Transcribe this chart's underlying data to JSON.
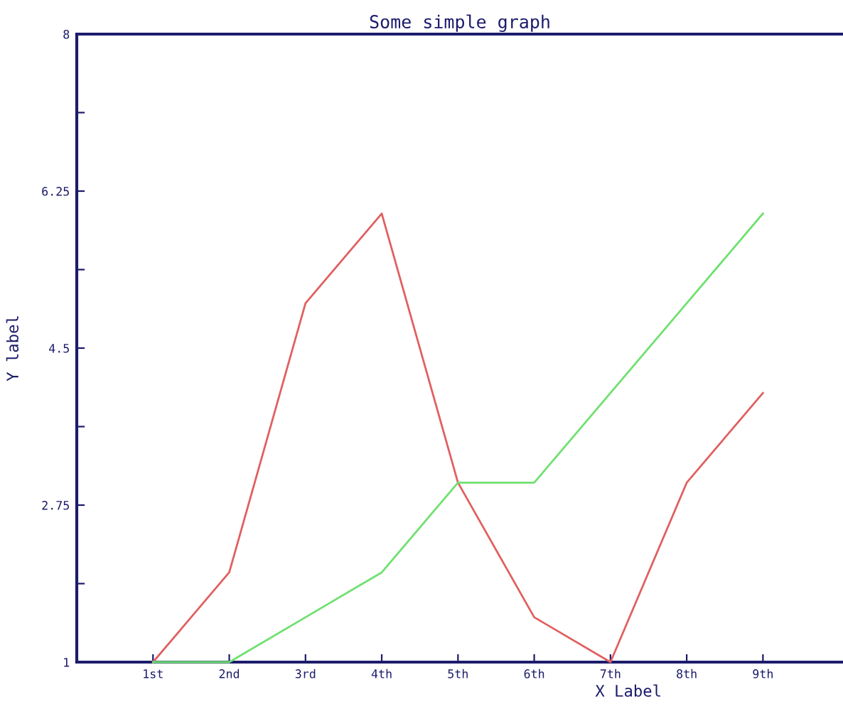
{
  "chart_data": {
    "type": "line",
    "title": "Some simple graph",
    "xlabel": "X Label",
    "ylabel": "Y label",
    "categories": [
      "1st",
      "2nd",
      "3rd",
      "4th",
      "5th",
      "6th",
      "7th",
      "8th",
      "9th"
    ],
    "series": [
      {
        "color": "#e06060",
        "values": [
          1,
          2,
          5,
          6,
          3,
          1.5,
          1,
          3,
          4
        ]
      },
      {
        "color": "#70e070",
        "values": [
          1,
          1,
          1.5,
          2,
          3,
          3,
          4,
          5,
          6
        ]
      }
    ],
    "ylim": [
      1,
      8
    ],
    "yticks": [
      1,
      {
        "value": 1.875,
        "label": null
      },
      2.75,
      {
        "value": 3.625,
        "label": null
      },
      4.5,
      {
        "value": 5.375,
        "label": null
      },
      6.25,
      {
        "value": 7.125,
        "label": null
      },
      8
    ],
    "grid": false,
    "marker": "none",
    "line_style": "solid"
  }
}
